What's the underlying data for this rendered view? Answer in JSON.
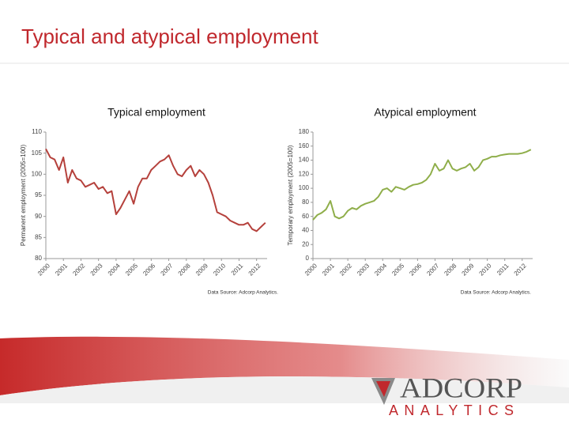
{
  "title": "Typical and atypical employment",
  "logo": {
    "name": "ADCORP",
    "tagline": "ANALYTICS"
  },
  "chart_data": [
    {
      "type": "line",
      "title": "Typical employment",
      "ylabel": "Permanent employment (2005=100)",
      "source": "Data Source: Adcorp Analytics.",
      "color": "#b5413c",
      "xlim": [
        2000,
        2012.6
      ],
      "xticks": [
        2000,
        2001,
        2002,
        2003,
        2004,
        2005,
        2006,
        2007,
        2008,
        2009,
        2010,
        2011,
        2012
      ],
      "ylim": [
        80,
        110
      ],
      "yticks": [
        80,
        85,
        90,
        95,
        100,
        105,
        110
      ],
      "x": [
        2000,
        2000.25,
        2000.5,
        2000.75,
        2001,
        2001.25,
        2001.5,
        2001.75,
        2002,
        2002.25,
        2002.5,
        2002.75,
        2003,
        2003.25,
        2003.5,
        2003.75,
        2004,
        2004.25,
        2004.5,
        2004.75,
        2005,
        2005.25,
        2005.5,
        2005.75,
        2006,
        2006.25,
        2006.5,
        2006.75,
        2007,
        2007.25,
        2007.5,
        2007.75,
        2008,
        2008.25,
        2008.5,
        2008.75,
        2009,
        2009.25,
        2009.5,
        2009.75,
        2010,
        2010.25,
        2010.5,
        2010.75,
        2011,
        2011.25,
        2011.5,
        2011.75,
        2012,
        2012.25,
        2012.5
      ],
      "values": [
        106,
        104,
        103.5,
        101,
        104,
        98,
        101,
        99,
        98.5,
        97,
        97.5,
        98,
        96.5,
        97,
        95.5,
        96,
        90.5,
        92,
        94,
        96,
        93,
        97,
        99,
        99,
        101,
        102,
        103,
        103.5,
        104.5,
        102,
        100,
        99.5,
        101,
        102,
        99.5,
        101,
        100,
        98,
        95,
        91,
        90.5,
        90,
        89,
        88.5,
        88,
        88,
        88.5,
        87,
        86.5,
        87.5,
        88.5
      ]
    },
    {
      "type": "line",
      "title": "Atypical employment",
      "ylabel": "Temporary employment (2005=100)",
      "source": "Data Source: Adcorp Analytics.",
      "color": "#8fae4a",
      "xlim": [
        2000,
        2012.6
      ],
      "xticks": [
        2000,
        2001,
        2002,
        2003,
        2004,
        2005,
        2006,
        2007,
        2008,
        2009,
        2010,
        2011,
        2012
      ],
      "ylim": [
        0,
        180
      ],
      "yticks": [
        0,
        20,
        40,
        60,
        80,
        100,
        120,
        140,
        160,
        180
      ],
      "x": [
        2000,
        2000.25,
        2000.5,
        2000.75,
        2001,
        2001.25,
        2001.5,
        2001.75,
        2002,
        2002.25,
        2002.5,
        2002.75,
        2003,
        2003.25,
        2003.5,
        2003.75,
        2004,
        2004.25,
        2004.5,
        2004.75,
        2005,
        2005.25,
        2005.5,
        2005.75,
        2006,
        2006.25,
        2006.5,
        2006.75,
        2007,
        2007.25,
        2007.5,
        2007.75,
        2008,
        2008.25,
        2008.5,
        2008.75,
        2009,
        2009.25,
        2009.5,
        2009.75,
        2010,
        2010.25,
        2010.5,
        2010.75,
        2011,
        2011.25,
        2011.5,
        2011.75,
        2012,
        2012.25,
        2012.5
      ],
      "values": [
        55,
        62,
        65,
        70,
        82,
        60,
        57,
        60,
        68,
        72,
        70,
        75,
        78,
        80,
        82,
        88,
        98,
        100,
        95,
        102,
        100,
        98,
        102,
        105,
        106,
        108,
        112,
        120,
        135,
        125,
        128,
        140,
        128,
        125,
        128,
        130,
        135,
        125,
        130,
        140,
        142,
        145,
        145,
        147,
        148,
        149,
        149,
        149,
        150,
        152,
        155
      ]
    }
  ]
}
